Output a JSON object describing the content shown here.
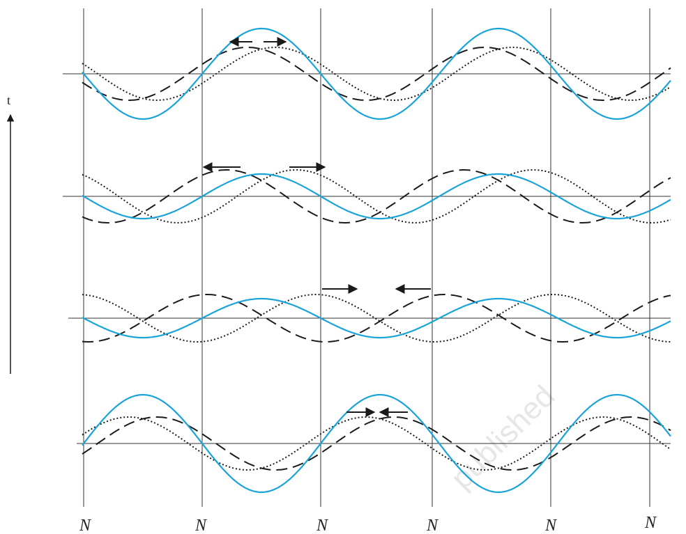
{
  "time_axis_label": "t",
  "node_labels": [
    "N",
    "N",
    "N",
    "N",
    "N",
    "N"
  ],
  "watermark": "published",
  "colors": {
    "blue": "#1aa3d9",
    "black": "#1a1a1a",
    "axis": "#333333"
  },
  "waves": [
    {
      "blue_amp": 65,
      "dash_amp": 38,
      "dash_shift": -20,
      "dot_amp": 38,
      "dot_shift": 20
    },
    {
      "blue_amp": 32,
      "dash_amp": 38,
      "dash_shift": -50,
      "dot_amp": 38,
      "dot_shift": 50
    },
    {
      "blue_amp": 28,
      "dash_amp": 34,
      "dash_shift": -78,
      "dot_amp": 34,
      "dot_shift": 78
    },
    {
      "blue_amp": 70,
      "dash_amp": 38,
      "dash_shift": 20,
      "dot_amp": 38,
      "dot_shift": -20
    }
  ]
}
